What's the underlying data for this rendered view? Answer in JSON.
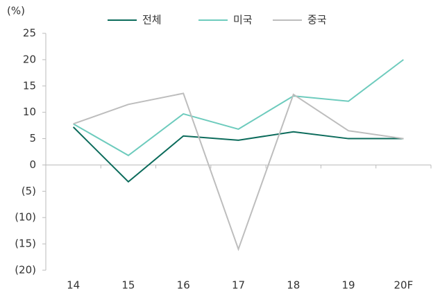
{
  "chart_data": {
    "type": "line",
    "unit_label": "(%)",
    "categories": [
      "14",
      "15",
      "16",
      "17",
      "18",
      "19",
      "20F"
    ],
    "series": [
      {
        "name": "전체",
        "color": "#0b6b5b",
        "values": [
          7.2,
          -3.2,
          5.5,
          4.7,
          6.3,
          5.0,
          5.0
        ]
      },
      {
        "name": "미국",
        "color": "#6dcbbd",
        "values": [
          7.8,
          1.8,
          9.7,
          6.8,
          13.1,
          12.1,
          20.0
        ]
      },
      {
        "name": "중국",
        "color": "#bdbdbd",
        "values": [
          7.8,
          11.5,
          13.6,
          -16.0,
          13.4,
          6.5,
          5.0
        ]
      }
    ],
    "ylim": [
      -20,
      25
    ],
    "yticks": [
      {
        "value": -20,
        "label": "(20)"
      },
      {
        "value": -15,
        "label": "(15)"
      },
      {
        "value": -10,
        "label": "(10)"
      },
      {
        "value": -5,
        "label": "(5)"
      },
      0,
      5,
      10,
      15,
      20,
      25
    ],
    "legend": "top"
  }
}
